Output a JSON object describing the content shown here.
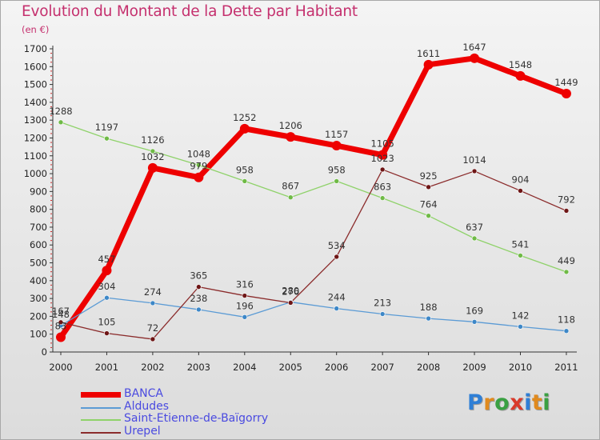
{
  "header": {
    "title": "Evolution du Montant de la Dette par Habitant",
    "unit": "(en €)"
  },
  "brand": {
    "letters": [
      {
        "char": "P",
        "color": "#2f7fd6"
      },
      {
        "char": "r",
        "color": "#e08a1e"
      },
      {
        "char": "o",
        "color": "#3aa042"
      },
      {
        "char": "x",
        "color": "#d93a2a"
      },
      {
        "char": "i",
        "color": "#2f7fd6"
      },
      {
        "char": "t",
        "color": "#e08a1e"
      },
      {
        "char": "i",
        "color": "#3aa042"
      }
    ]
  },
  "chart_data": {
    "type": "line",
    "title": "Evolution du Montant de la Dette par Habitant",
    "subtitle": "(en €)",
    "xlabel": "",
    "ylabel": "",
    "categories": [
      "2000",
      "2001",
      "2002",
      "2003",
      "2004",
      "2005",
      "2006",
      "2007",
      "2008",
      "2009",
      "2010",
      "2011"
    ],
    "ylim": [
      0,
      1700
    ],
    "yticks": [
      0,
      100,
      200,
      300,
      400,
      500,
      600,
      700,
      800,
      900,
      1000,
      1100,
      1200,
      1300,
      1400,
      1500,
      1600,
      1700
    ],
    "grid": false,
    "legend_position": "bottom-left",
    "series": [
      {
        "name": "BANCA",
        "color": "#ee0000",
        "bold": true,
        "values": [
          83,
          457,
          1032,
          979,
          1252,
          1206,
          1157,
          1105,
          1611,
          1647,
          1548,
          1449
        ],
        "labels": [
          "83",
          "457",
          "1032",
          "979",
          "1252",
          "1206",
          "1157",
          "1105",
          "1611",
          "1647",
          "1548",
          "1449"
        ]
      },
      {
        "name": "Aldudes",
        "color": "#5b9bd5",
        "dot": "#3d87c7",
        "bold": false,
        "values": [
          148,
          304,
          274,
          238,
          196,
          280,
          244,
          213,
          188,
          169,
          142,
          118
        ],
        "labels": [
          "148",
          "304",
          "274",
          "238",
          "196",
          "280",
          "244",
          "213",
          "188",
          "169",
          "142",
          "118"
        ]
      },
      {
        "name": "Saint-Etienne-de-Baïgorry",
        "color": "#8fd26a",
        "dot": "#6fba46",
        "bold": false,
        "values": [
          1288,
          1197,
          1126,
          1048,
          958,
          867,
          958,
          863,
          764,
          637,
          541,
          449
        ],
        "labels": [
          "1288",
          "1197",
          "1126",
          "1048",
          "958",
          "867",
          "958",
          "863",
          "764",
          "637",
          "541",
          "449"
        ]
      },
      {
        "name": "Urepel",
        "color": "#8b2c2c",
        "dot": "#6e1616",
        "bold": false,
        "values": [
          167,
          105,
          72,
          365,
          316,
          276,
          534,
          1023,
          925,
          1014,
          904,
          792
        ],
        "labels": [
          "167",
          "105",
          "72",
          "365",
          "316",
          "276",
          "534",
          "1023",
          "925",
          "1014",
          "904",
          "792"
        ]
      }
    ]
  }
}
